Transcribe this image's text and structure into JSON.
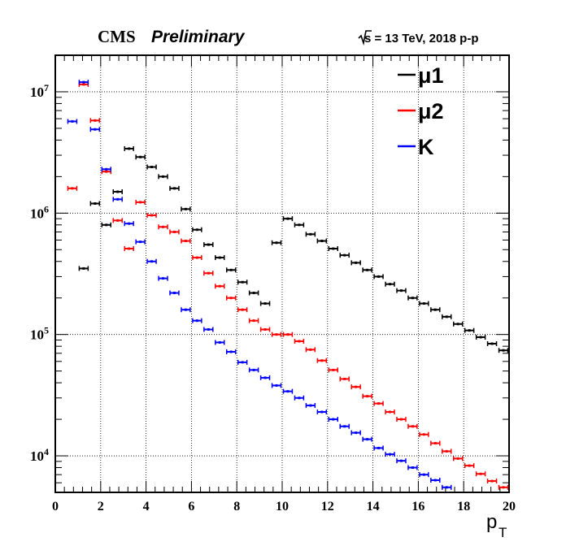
{
  "chart_data": {
    "type": "scatter",
    "title_left": "CMS",
    "title_left_italic": "Preliminary",
    "title_right": "s = 13 TeV, 2018 p-p",
    "xlabel": "p",
    "xlabel_sub": "T",
    "ylabel": "",
    "xlim": [
      0,
      20
    ],
    "ylim": [
      5000,
      20000000
    ],
    "y_scale": "log",
    "grid": true,
    "legend_position": "top-right",
    "x_ticks": [
      0,
      2,
      4,
      6,
      8,
      10,
      12,
      14,
      16,
      18,
      20
    ],
    "y_ticks": [
      {
        "value": 10000,
        "base": "10",
        "exp": "4"
      },
      {
        "value": 100000,
        "base": "10",
        "exp": "5"
      },
      {
        "value": 1000000,
        "base": "10",
        "exp": "6"
      },
      {
        "value": 10000000,
        "base": "10",
        "exp": "7"
      }
    ],
    "bin_width": 0.5,
    "series": [
      {
        "name": "μ1",
        "color": "#000000",
        "x": [
          1.25,
          1.75,
          2.25,
          2.75,
          3.25,
          3.75,
          4.25,
          4.75,
          5.25,
          5.75,
          6.25,
          6.75,
          7.25,
          7.75,
          8.25,
          8.75,
          9.25,
          9.75,
          10.25,
          10.75,
          11.25,
          11.75,
          12.25,
          12.75,
          13.25,
          13.75,
          14.25,
          14.75,
          15.25,
          15.75,
          16.25,
          16.75,
          17.25,
          17.75,
          18.25,
          18.75,
          19.25,
          19.75
        ],
        "y": [
          350000,
          1200000,
          800000,
          1500000,
          3400000,
          2900000,
          2400000,
          2000000,
          1600000,
          1080000,
          730000,
          550000,
          430000,
          340000,
          270000,
          220000,
          180000,
          570000,
          900000,
          800000,
          670000,
          590000,
          510000,
          450000,
          390000,
          340000,
          300000,
          260000,
          230000,
          200000,
          180000,
          160000,
          140000,
          122000,
          108000,
          95000,
          84000,
          74000
        ]
      },
      {
        "name": "μ2",
        "color": "#ff0000",
        "x": [
          0.75,
          1.25,
          1.75,
          2.25,
          2.75,
          3.25,
          3.75,
          4.25,
          4.75,
          5.25,
          5.75,
          6.25,
          6.75,
          7.25,
          7.75,
          8.25,
          8.75,
          9.25,
          9.75,
          10.25,
          10.75,
          11.25,
          11.75,
          12.25,
          12.75,
          13.25,
          13.75,
          14.25,
          14.75,
          15.25,
          15.75,
          16.25,
          16.75,
          17.25,
          17.75,
          18.25,
          18.75,
          19.25,
          19.75
        ],
        "y": [
          1600000,
          11500000,
          5800000,
          2200000,
          870000,
          510000,
          1230000,
          960000,
          770000,
          700000,
          590000,
          430000,
          320000,
          250000,
          200000,
          160000,
          130000,
          110000,
          100000,
          100000,
          88000,
          75000,
          61000,
          51000,
          43000,
          37000,
          31000,
          27000,
          23000,
          20000,
          17500,
          15000,
          12700,
          10900,
          9500,
          8300,
          7100,
          6200,
          5500
        ]
      },
      {
        "name": "K",
        "color": "#0000ff",
        "x": [
          0.75,
          1.25,
          1.75,
          2.25,
          2.75,
          3.25,
          3.75,
          4.25,
          4.75,
          5.25,
          5.75,
          6.25,
          6.75,
          7.25,
          7.75,
          8.25,
          8.75,
          9.25,
          9.75,
          10.25,
          10.75,
          11.25,
          11.75,
          12.25,
          12.75,
          13.25,
          13.75,
          14.25,
          14.75,
          15.25,
          15.75,
          16.25,
          16.75,
          17.25
        ],
        "y": [
          5700000,
          12000000,
          4900000,
          2300000,
          1300000,
          820000,
          580000,
          400000,
          290000,
          220000,
          160000,
          130000,
          110000,
          86000,
          72000,
          59000,
          51000,
          44000,
          38000,
          34000,
          30000,
          26000,
          23000,
          20000,
          17500,
          15500,
          13700,
          11600,
          10300,
          9100,
          8000,
          7000,
          6300,
          5500
        ]
      }
    ]
  }
}
